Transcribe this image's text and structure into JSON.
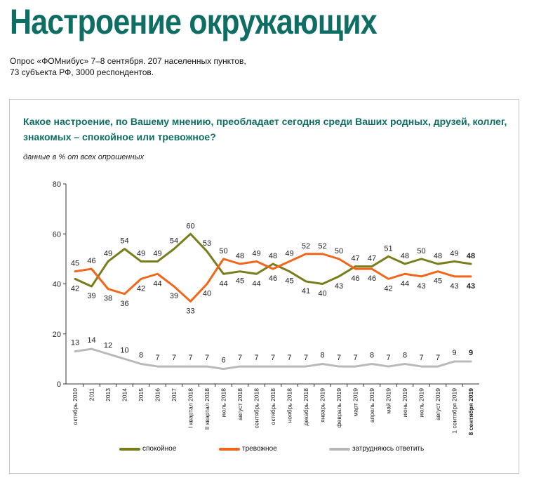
{
  "header": {
    "title": "Настроение окружающих",
    "subtitle_line1": "Опрос «ФОМнибус» 7–8 сентября. 207 населенных пунктов,",
    "subtitle_line2": "73 субъекта РФ, 3000 респондентов."
  },
  "chart_data": {
    "type": "line",
    "question": "Какое настроение, по Вашему мнению, преобладает сегодня среди Ваших родных, друзей, коллег, знакомых – спокойное или тревожное?",
    "units_note": "данные в % от всех опрошенных",
    "ylim": [
      0,
      80
    ],
    "yticks": [
      0,
      20,
      40,
      60,
      80
    ],
    "grid": false,
    "legend_position": "bottom",
    "categories": [
      "октябрь 2010",
      "2011",
      "2013",
      "2014",
      "2015",
      "2016",
      "2017",
      "I квартал 2018",
      "II квартал 2018",
      "июль 2018",
      "август 2018",
      "сентябрь 2018",
      "октябрь 2018",
      "ноябрь 2018",
      "декабрь 2018",
      "январь 2019",
      "февраль 2019",
      "март 2019",
      "апрель 2019",
      "май 2019",
      "июнь 2019",
      "июль 2019",
      "август 2019",
      "1 сентября 2019",
      "8 сентября 2019"
    ],
    "series": [
      {
        "name": "спокойное",
        "color": "#7a7d1c",
        "values": [
          42,
          39,
          49,
          54,
          49,
          49,
          54,
          60,
          53,
          44,
          45,
          44,
          48,
          45,
          41,
          40,
          43,
          47,
          47,
          51,
          48,
          50,
          48,
          49,
          48
        ]
      },
      {
        "name": "тревожное",
        "color": "#f2661b",
        "values": [
          45,
          46,
          38,
          36,
          42,
          44,
          39,
          33,
          40,
          50,
          48,
          49,
          46,
          49,
          52,
          52,
          50,
          46,
          46,
          42,
          44,
          43,
          45,
          43,
          43
        ]
      },
      {
        "name": "затрудняюсь ответить",
        "color": "#b9b9b9",
        "values": [
          13,
          14,
          12,
          10,
          8,
          7,
          7,
          7,
          7,
          6,
          7,
          7,
          7,
          7,
          7,
          8,
          7,
          7,
          8,
          7,
          8,
          7,
          7,
          9,
          9
        ]
      }
    ]
  }
}
